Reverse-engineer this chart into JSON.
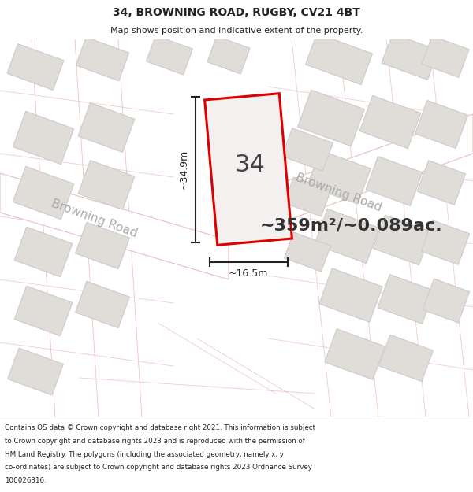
{
  "title": "34, BROWNING ROAD, RUGBY, CV21 4BT",
  "subtitle": "Map shows position and indicative extent of the property.",
  "area_text": "~359m²/~0.089ac.",
  "label_34": "34",
  "dim_width": "~16.5m",
  "dim_height": "~34.9m",
  "road_label1": "Browning Road",
  "road_label2": "Browning Road",
  "footer_lines": [
    "Contains OS data © Crown copyright and database right 2021. This information is subject",
    "to Crown copyright and database rights 2023 and is reproduced with the permission of",
    "HM Land Registry. The polygons (including the associated geometry, namely x, y",
    "co-ordinates) are subject to Crown copyright and database rights 2023 Ordnance Survey",
    "100026316."
  ],
  "map_bg": "#f7f5f2",
  "plot_fill": "#f5f0f0",
  "plot_edge": "#dd0000",
  "road_fill": "#ffffff",
  "road_edge": "#e8c0c0",
  "building_fill": "#e0dcd8",
  "building_edge": "#cccccc",
  "building_outline_color": "#dd9999",
  "dim_color": "#222222",
  "road_label_color": "#aaaaaa",
  "area_color": "#333333",
  "title_color": "#222222",
  "footer_color": "#222222"
}
